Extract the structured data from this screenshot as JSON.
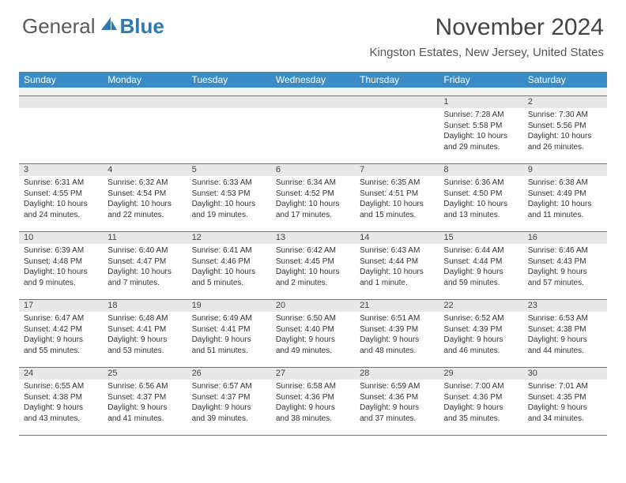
{
  "logo": {
    "general": "General",
    "blue": "Blue"
  },
  "title": "November 2024",
  "location": "Kingston Estates, New Jersey, United States",
  "colors": {
    "header_bg": "#3b8bc7",
    "header_text": "#ffffff",
    "daynum_bg": "#e8e8e8",
    "border": "#5a7a94",
    "text": "#333333",
    "title_text": "#444444"
  },
  "daysOfWeek": [
    "Sunday",
    "Monday",
    "Tuesday",
    "Wednesday",
    "Thursday",
    "Friday",
    "Saturday"
  ],
  "weeks": [
    [
      null,
      null,
      null,
      null,
      null,
      {
        "n": "1",
        "sr": "7:28 AM",
        "ss": "5:58 PM",
        "dl": "10 hours and 29 minutes."
      },
      {
        "n": "2",
        "sr": "7:30 AM",
        "ss": "5:56 PM",
        "dl": "10 hours and 26 minutes."
      }
    ],
    [
      {
        "n": "3",
        "sr": "6:31 AM",
        "ss": "4:55 PM",
        "dl": "10 hours and 24 minutes."
      },
      {
        "n": "4",
        "sr": "6:32 AM",
        "ss": "4:54 PM",
        "dl": "10 hours and 22 minutes."
      },
      {
        "n": "5",
        "sr": "6:33 AM",
        "ss": "4:53 PM",
        "dl": "10 hours and 19 minutes."
      },
      {
        "n": "6",
        "sr": "6:34 AM",
        "ss": "4:52 PM",
        "dl": "10 hours and 17 minutes."
      },
      {
        "n": "7",
        "sr": "6:35 AM",
        "ss": "4:51 PM",
        "dl": "10 hours and 15 minutes."
      },
      {
        "n": "8",
        "sr": "6:36 AM",
        "ss": "4:50 PM",
        "dl": "10 hours and 13 minutes."
      },
      {
        "n": "9",
        "sr": "6:38 AM",
        "ss": "4:49 PM",
        "dl": "10 hours and 11 minutes."
      }
    ],
    [
      {
        "n": "10",
        "sr": "6:39 AM",
        "ss": "4:48 PM",
        "dl": "10 hours and 9 minutes."
      },
      {
        "n": "11",
        "sr": "6:40 AM",
        "ss": "4:47 PM",
        "dl": "10 hours and 7 minutes."
      },
      {
        "n": "12",
        "sr": "6:41 AM",
        "ss": "4:46 PM",
        "dl": "10 hours and 5 minutes."
      },
      {
        "n": "13",
        "sr": "6:42 AM",
        "ss": "4:45 PM",
        "dl": "10 hours and 2 minutes."
      },
      {
        "n": "14",
        "sr": "6:43 AM",
        "ss": "4:44 PM",
        "dl": "10 hours and 1 minute."
      },
      {
        "n": "15",
        "sr": "6:44 AM",
        "ss": "4:44 PM",
        "dl": "9 hours and 59 minutes."
      },
      {
        "n": "16",
        "sr": "6:46 AM",
        "ss": "4:43 PM",
        "dl": "9 hours and 57 minutes."
      }
    ],
    [
      {
        "n": "17",
        "sr": "6:47 AM",
        "ss": "4:42 PM",
        "dl": "9 hours and 55 minutes."
      },
      {
        "n": "18",
        "sr": "6:48 AM",
        "ss": "4:41 PM",
        "dl": "9 hours and 53 minutes."
      },
      {
        "n": "19",
        "sr": "6:49 AM",
        "ss": "4:41 PM",
        "dl": "9 hours and 51 minutes."
      },
      {
        "n": "20",
        "sr": "6:50 AM",
        "ss": "4:40 PM",
        "dl": "9 hours and 49 minutes."
      },
      {
        "n": "21",
        "sr": "6:51 AM",
        "ss": "4:39 PM",
        "dl": "9 hours and 48 minutes."
      },
      {
        "n": "22",
        "sr": "6:52 AM",
        "ss": "4:39 PM",
        "dl": "9 hours and 46 minutes."
      },
      {
        "n": "23",
        "sr": "6:53 AM",
        "ss": "4:38 PM",
        "dl": "9 hours and 44 minutes."
      }
    ],
    [
      {
        "n": "24",
        "sr": "6:55 AM",
        "ss": "4:38 PM",
        "dl": "9 hours and 43 minutes."
      },
      {
        "n": "25",
        "sr": "6:56 AM",
        "ss": "4:37 PM",
        "dl": "9 hours and 41 minutes."
      },
      {
        "n": "26",
        "sr": "6:57 AM",
        "ss": "4:37 PM",
        "dl": "9 hours and 39 minutes."
      },
      {
        "n": "27",
        "sr": "6:58 AM",
        "ss": "4:36 PM",
        "dl": "9 hours and 38 minutes."
      },
      {
        "n": "28",
        "sr": "6:59 AM",
        "ss": "4:36 PM",
        "dl": "9 hours and 37 minutes."
      },
      {
        "n": "29",
        "sr": "7:00 AM",
        "ss": "4:36 PM",
        "dl": "9 hours and 35 minutes."
      },
      {
        "n": "30",
        "sr": "7:01 AM",
        "ss": "4:35 PM",
        "dl": "9 hours and 34 minutes."
      }
    ]
  ],
  "labels": {
    "sunrise": "Sunrise:",
    "sunset": "Sunset:",
    "daylight": "Daylight:"
  }
}
